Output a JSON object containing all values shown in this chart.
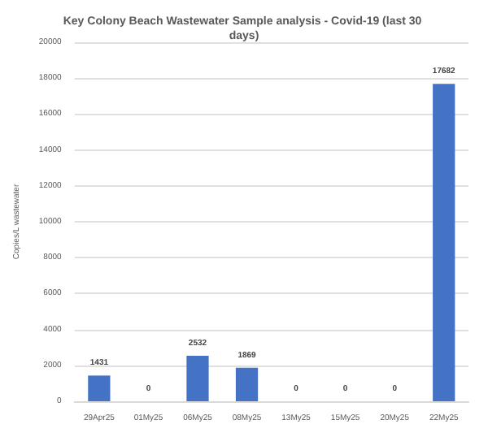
{
  "chart_data": {
    "type": "bar",
    "title": "Key Colony Beach Wastewater Sample analysis - Covid-19 (last 30 days)",
    "ylabel": "Copies/L wastewater",
    "categories": [
      "29Apr25",
      "01My25",
      "06My25",
      "08My25",
      "13My25",
      "15My25",
      "20My25",
      "22My25"
    ],
    "values": [
      1431,
      0,
      2532,
      1869,
      0,
      0,
      0,
      17682
    ],
    "color": "#4472c4",
    "ylim": [
      0,
      20000
    ],
    "yticks": [
      0,
      2000,
      4000,
      6000,
      8000,
      10000,
      12000,
      14000,
      16000,
      18000,
      20000
    ],
    "grid": "y",
    "data_labels": true
  }
}
